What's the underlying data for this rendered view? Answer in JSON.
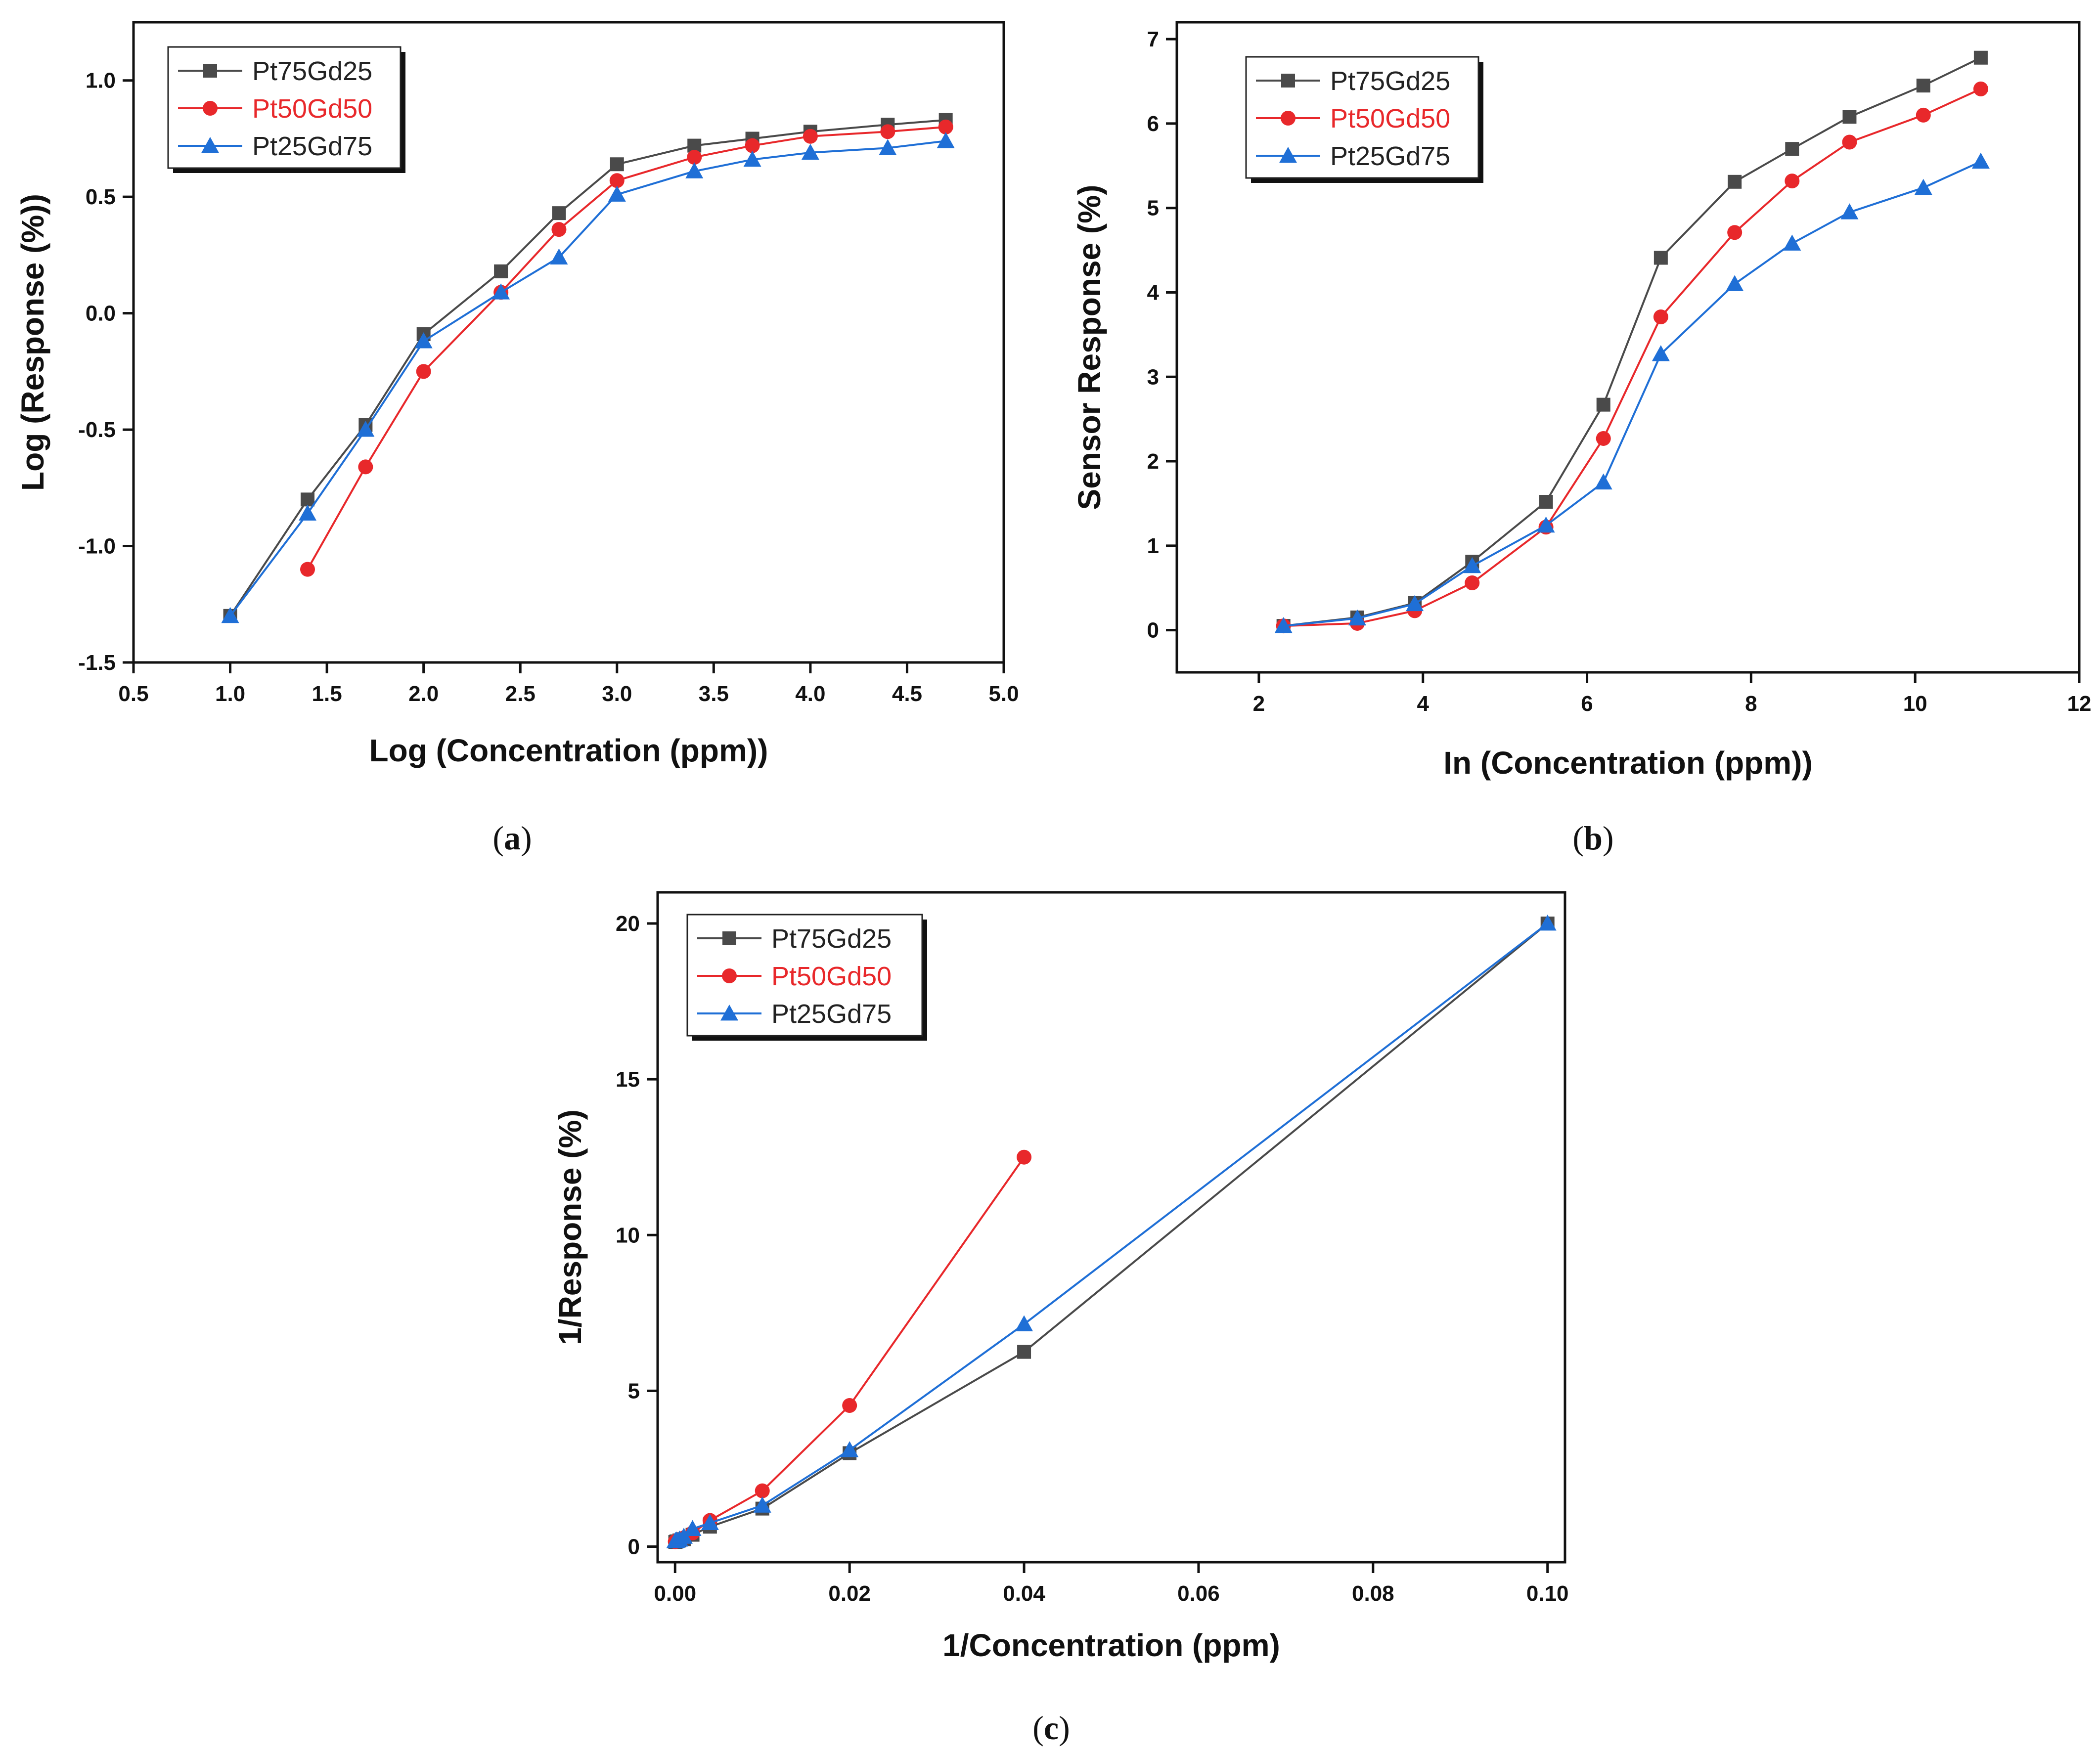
{
  "colors": {
    "Pt75Gd25": "#4a4a4a",
    "Pt50Gd50": "#e8282b",
    "Pt25Gd75": "#1f6fd6",
    "axis": "#111111"
  },
  "chart_data": [
    {
      "id": "a",
      "panel_label": "a",
      "type": "line",
      "xlabel": "Log (Concentration (ppm))",
      "ylabel": "Log (Response (%))",
      "xlim": [
        0.5,
        5.0
      ],
      "ylim": [
        -1.5,
        1.25
      ],
      "xticks": [
        0.5,
        1.0,
        1.5,
        2.0,
        2.5,
        3.0,
        3.5,
        4.0,
        4.5,
        5.0
      ],
      "yticks": [
        -1.5,
        -1.0,
        -0.5,
        0.0,
        0.5,
        1.0
      ],
      "tick_decimals": 1,
      "legend_position": "top-left",
      "series": [
        {
          "name": "Pt75Gd25",
          "marker": "square",
          "x": [
            1.0,
            1.4,
            1.7,
            2.0,
            2.4,
            2.7,
            3.0,
            3.4,
            3.7,
            4.0,
            4.4,
            4.7
          ],
          "values": [
            -1.3,
            -0.8,
            -0.48,
            -0.09,
            0.18,
            0.43,
            0.64,
            0.72,
            0.75,
            0.78,
            0.81,
            0.83
          ]
        },
        {
          "name": "Pt50Gd50",
          "marker": "circle",
          "x": [
            1.4,
            1.7,
            2.0,
            2.4,
            2.7,
            3.0,
            3.4,
            3.7,
            4.0,
            4.4,
            4.7
          ],
          "values": [
            -1.1,
            -0.66,
            -0.25,
            0.09,
            0.36,
            0.57,
            0.67,
            0.72,
            0.76,
            0.78,
            0.8
          ]
        },
        {
          "name": "Pt25Gd75",
          "marker": "triangle",
          "x": [
            1.0,
            1.4,
            1.7,
            2.0,
            2.4,
            2.7,
            3.0,
            3.4,
            3.7,
            4.0,
            4.4,
            4.7
          ],
          "values": [
            -1.3,
            -0.86,
            -0.5,
            -0.12,
            0.09,
            0.24,
            0.51,
            0.61,
            0.66,
            0.69,
            0.71,
            0.74
          ]
        }
      ]
    },
    {
      "id": "b",
      "panel_label": "b",
      "type": "line",
      "xlabel": "In (Concentration (ppm))",
      "ylabel": "Sensor Response (%)",
      "xlim": [
        1.0,
        12.0
      ],
      "ylim": [
        -0.5,
        7.2
      ],
      "xticks": [
        2,
        4,
        6,
        8,
        10,
        12
      ],
      "yticks": [
        0,
        1,
        2,
        3,
        4,
        5,
        6,
        7
      ],
      "tick_decimals": 0,
      "legend_position": "top-left",
      "series": [
        {
          "name": "Pt75Gd25",
          "marker": "square",
          "x": [
            2.3,
            3.2,
            3.9,
            4.6,
            5.5,
            6.2,
            6.9,
            7.8,
            8.5,
            9.2,
            10.1,
            10.8
          ],
          "values": [
            0.05,
            0.15,
            0.32,
            0.81,
            1.52,
            2.67,
            4.41,
            5.31,
            5.7,
            6.08,
            6.45,
            6.78
          ]
        },
        {
          "name": "Pt50Gd50",
          "marker": "circle",
          "x": [
            2.3,
            3.2,
            3.9,
            4.6,
            5.5,
            6.2,
            6.9,
            7.8,
            8.5,
            9.2,
            10.1,
            10.8
          ],
          "values": [
            0.05,
            0.08,
            0.23,
            0.56,
            1.22,
            2.27,
            3.71,
            4.71,
            5.32,
            5.78,
            6.1,
            6.41
          ]
        },
        {
          "name": "Pt25Gd75",
          "marker": "triangle",
          "x": [
            2.3,
            3.2,
            3.9,
            4.6,
            5.5,
            6.2,
            6.9,
            7.8,
            8.5,
            9.2,
            10.1,
            10.8
          ],
          "values": [
            0.05,
            0.14,
            0.31,
            0.76,
            1.24,
            1.75,
            3.27,
            4.1,
            4.58,
            4.95,
            5.24,
            5.55
          ]
        }
      ]
    },
    {
      "id": "c",
      "panel_label": "c",
      "type": "line",
      "xlabel": "1/Concentration (ppm)",
      "ylabel": "1/Response (%)",
      "xlim": [
        -0.002,
        0.102
      ],
      "ylim": [
        -0.5,
        21.0
      ],
      "xticks": [
        0.0,
        0.02,
        0.04,
        0.06,
        0.08,
        0.1
      ],
      "yticks": [
        0,
        5,
        10,
        15,
        20
      ],
      "tick_decimals": 2,
      "ytick_decimals": 0,
      "legend_position": "top-left",
      "series": [
        {
          "name": "Pt75Gd25",
          "marker": "square",
          "x": [
            2e-05,
            0.0001,
            0.0002,
            0.0005,
            0.001,
            0.002,
            0.004,
            0.01,
            0.02,
            0.04,
            0.1
          ],
          "values": [
            0.15,
            0.16,
            0.17,
            0.2,
            0.24,
            0.38,
            0.64,
            1.22,
            3.0,
            6.25,
            20.0
          ]
        },
        {
          "name": "Pt50Gd50",
          "marker": "circle",
          "x": [
            2e-05,
            0.0001,
            0.0002,
            0.0005,
            0.001,
            0.002,
            0.004,
            0.01,
            0.02,
            0.04
          ],
          "values": [
            0.16,
            0.17,
            0.19,
            0.22,
            0.28,
            0.44,
            0.84,
            1.79,
            4.53,
            12.5
          ]
        },
        {
          "name": "Pt25Gd75",
          "marker": "triangle",
          "x": [
            2e-05,
            0.0001,
            0.0002,
            0.0005,
            0.001,
            0.002,
            0.004,
            0.01,
            0.02,
            0.04,
            0.1
          ],
          "values": [
            0.18,
            0.19,
            0.2,
            0.23,
            0.32,
            0.57,
            0.76,
            1.32,
            3.1,
            7.14,
            20.0
          ]
        }
      ]
    }
  ]
}
